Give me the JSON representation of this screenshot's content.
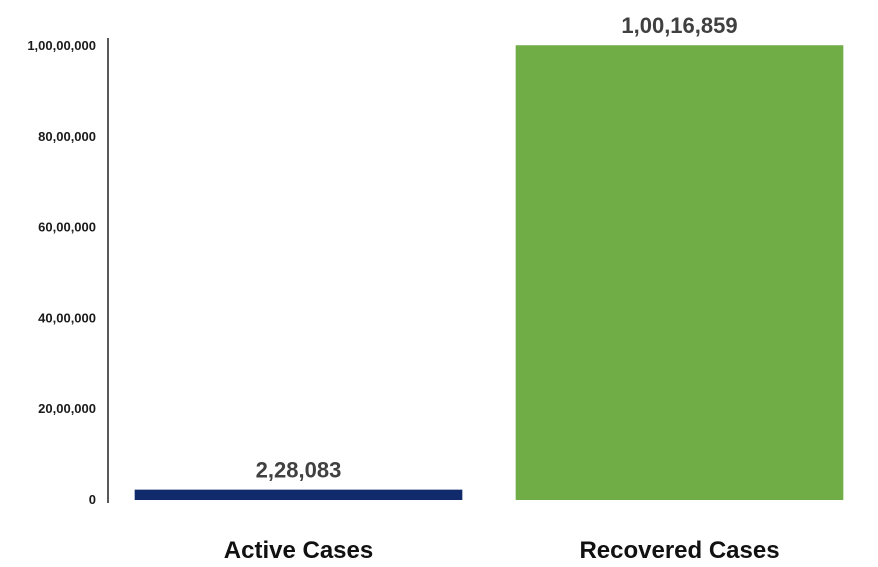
{
  "chart_data": {
    "type": "bar",
    "categories": [
      "Active Cases",
      "Recovered Cases"
    ],
    "values": [
      228083,
      10016859
    ],
    "value_labels": [
      "2,28,083",
      "1,00,16,859"
    ],
    "colors": [
      "#102a6b",
      "#70ad47"
    ],
    "ylim": [
      0,
      10000000
    ],
    "yticks": [
      0,
      2000000,
      4000000,
      6000000,
      8000000,
      10000000
    ],
    "ytick_labels": [
      "0",
      "20,00,000",
      "40,00,000",
      "60,00,000",
      "80,00,000",
      "1,00,00,000"
    ],
    "grid": false,
    "title": "",
    "xlabel": "",
    "ylabel": ""
  }
}
